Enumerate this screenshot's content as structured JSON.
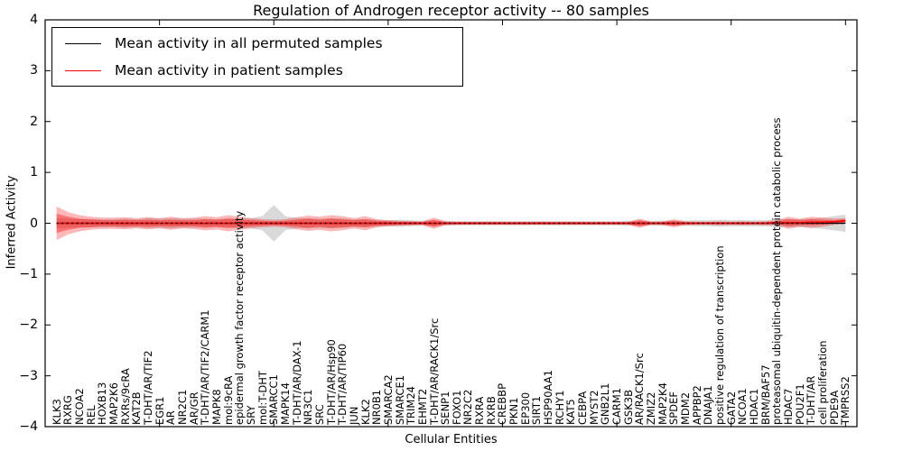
{
  "chart_data": {
    "type": "area",
    "title": "Regulation of Androgen receptor activity -- 80 samples",
    "xlabel": "Cellular Entities",
    "ylabel": "Inferred Activity",
    "ylim": [
      -4,
      4
    ],
    "yticks": [
      4,
      3,
      2,
      1,
      0,
      -1,
      -2,
      -3,
      -4
    ],
    "yticklabels": [
      "4",
      "3",
      "2",
      "1",
      "0",
      "−1",
      "−2",
      "−3",
      "−4"
    ],
    "xtick_interval": 10,
    "grid": false,
    "legend_position": "upper left",
    "categories": [
      "KLK3",
      "RXRG",
      "NCOA2",
      "REL",
      "HOXB13",
      "MAP2K6",
      "RXRs/9cRA",
      "KAT2B",
      "T-DHT/AR/TIF2",
      "EGR1",
      "AR",
      "NR2C1",
      "AR/GR",
      "T-DHT/AR/TIF2/CARM1",
      "MAPK8",
      "mol:9cRA",
      "epidermal growth factor receptor activity",
      "SRY",
      "mol:T-DHT",
      "SMARCC1",
      "MAPK14",
      "T-DHT/AR/DAX-1",
      "NR3C1",
      "SRC",
      "T-DHT/AR/Hsp90",
      "T-DHT/AR/TIP60",
      "JUN",
      "KLK2",
      "NR0B1",
      "SMARCA2",
      "SMARCE1",
      "TRIM24",
      "EHMT2",
      "T-DHT/AR/RACK1/Src",
      "SENP1",
      "FOXO1",
      "NR2C2",
      "RXRA",
      "RXRB",
      "CREBBP",
      "PKN1",
      "EP300",
      "SIRT1",
      "HSP90AA1",
      "RCHY1",
      "KAT5",
      "CEBPA",
      "MYST2",
      "GNB2L1",
      "CARM1",
      "GSK3B",
      "AR/RACK1/Src",
      "ZMIZ2",
      "MAP2K4",
      "SPDEF",
      "MDM2",
      "APPBP2",
      "DNAJA1",
      "positive regulation of transcription",
      "GATA2",
      "NCOA1",
      "HDAC1",
      "BRM/BAF57",
      "proteasomal ubiquitin-dependent protein catabolic process",
      "HDAC7",
      "POU2F1",
      "T-DHT/AR",
      "cell proliferation",
      "PDE9A",
      "TMPRSS2"
    ],
    "series": [
      {
        "name": "Mean activity in all permuted samples",
        "color": "#000000",
        "style": "solid-with-dotted-overlay",
        "mean": 0,
        "band_halfwidth": [
          0.1,
          0.09,
          0.08,
          0.08,
          0.08,
          0.08,
          0.09,
          0.08,
          0.1,
          0.09,
          0.1,
          0.09,
          0.09,
          0.09,
          0.08,
          0.09,
          0.1,
          0.1,
          0.14,
          0.36,
          0.14,
          0.1,
          0.1,
          0.09,
          0.1,
          0.09,
          0.08,
          0.08,
          0.07,
          0.06,
          0.07,
          0.06,
          0.05,
          0.06,
          0.05,
          0.04,
          0.04,
          0.04,
          0.04,
          0.04,
          0.04,
          0.04,
          0.04,
          0.04,
          0.04,
          0.04,
          0.04,
          0.04,
          0.04,
          0.04,
          0.05,
          0.05,
          0.05,
          0.05,
          0.05,
          0.05,
          0.06,
          0.06,
          0.07,
          0.06,
          0.06,
          0.06,
          0.06,
          0.08,
          0.08,
          0.08,
          0.09,
          0.11,
          0.14,
          0.17
        ]
      },
      {
        "name": "Mean activity in patient samples",
        "color": "#ff0000",
        "style": "solid",
        "mean": [
          0,
          0,
          0,
          0,
          0,
          0,
          0,
          0,
          0,
          0,
          0,
          0,
          0,
          0,
          0,
          0,
          0,
          0,
          0,
          0,
          0,
          0,
          0,
          0,
          0,
          0,
          0,
          0,
          0,
          0,
          0,
          0,
          0,
          0,
          0,
          0,
          0,
          0,
          0,
          0,
          0,
          0,
          0,
          0,
          0,
          0,
          0,
          0,
          0,
          0,
          0,
          0,
          0,
          0,
          0,
          0,
          0,
          0,
          0,
          0,
          0,
          0,
          0,
          0.01,
          0.01,
          0.01,
          0.02,
          0.02,
          0.03,
          0.05
        ],
        "band_outer_halfwidth": [
          0.33,
          0.22,
          0.16,
          0.13,
          0.11,
          0.11,
          0.12,
          0.1,
          0.12,
          0.1,
          0.13,
          0.1,
          0.11,
          0.14,
          0.12,
          0.16,
          0.13,
          0.1,
          0.08,
          0.07,
          0.08,
          0.12,
          0.15,
          0.13,
          0.16,
          0.14,
          0.1,
          0.14,
          0.08,
          0.06,
          0.05,
          0.04,
          0.04,
          0.11,
          0.04,
          0.03,
          0.03,
          0.03,
          0.03,
          0.03,
          0.03,
          0.03,
          0.03,
          0.03,
          0.03,
          0.03,
          0.03,
          0.03,
          0.03,
          0.03,
          0.03,
          0.09,
          0.03,
          0.04,
          0.08,
          0.04,
          0.03,
          0.03,
          0.04,
          0.03,
          0.04,
          0.03,
          0.04,
          0.05,
          0.12,
          0.08,
          0.11,
          0.09,
          0.06,
          0.05
        ],
        "band_inner_halfwidth": [
          0.19,
          0.13,
          0.09,
          0.08,
          0.06,
          0.06,
          0.07,
          0.06,
          0.07,
          0.06,
          0.07,
          0.06,
          0.06,
          0.08,
          0.07,
          0.09,
          0.08,
          0.06,
          0.05,
          0.04,
          0.05,
          0.07,
          0.09,
          0.07,
          0.09,
          0.08,
          0.06,
          0.08,
          0.05,
          0.04,
          0.03,
          0.03,
          0.02,
          0.07,
          0.02,
          0.02,
          0.02,
          0.02,
          0.02,
          0.02,
          0.02,
          0.02,
          0.02,
          0.02,
          0.02,
          0.02,
          0.02,
          0.02,
          0.02,
          0.02,
          0.02,
          0.06,
          0.02,
          0.02,
          0.05,
          0.02,
          0.02,
          0.02,
          0.02,
          0.02,
          0.02,
          0.02,
          0.02,
          0.03,
          0.07,
          0.05,
          0.06,
          0.05,
          0.03,
          0.03
        ]
      }
    ],
    "band_colors": {
      "permuted": "rgba(128,128,128,0.30)",
      "patient_outer": "rgba(255,0,0,0.28)",
      "patient_inner": "rgba(255,0,0,0.38)"
    }
  }
}
